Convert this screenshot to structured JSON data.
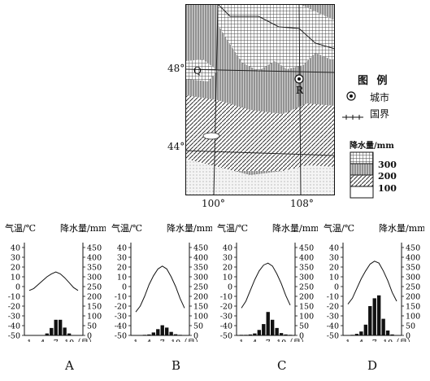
{
  "map": {
    "lat_labels": [
      "48°",
      "44°"
    ],
    "lon_labels": [
      "100°",
      "108°"
    ],
    "point_labels": {
      "Q": "Q",
      "R": "R"
    }
  },
  "legend": {
    "title": "图 例",
    "city_label": "城市",
    "border_label": "国界",
    "precip_title": "降水量/mm",
    "precip_values": [
      "300",
      "200",
      "100"
    ]
  },
  "climate_axes": {
    "temp_title": "气温/℃",
    "precip_title": "降水量/mm",
    "temp_ticks": [
      "40",
      "30",
      "20",
      "10",
      "0",
      "-10",
      "-20",
      "-30",
      "-40",
      "-50"
    ],
    "precip_ticks": [
      "450",
      "400",
      "350",
      "300",
      "250",
      "200",
      "150",
      "100",
      "50",
      "0"
    ],
    "month_ticks": [
      "1",
      "4",
      "7",
      "10"
    ],
    "month_unit": "（月）"
  },
  "chart_data": [
    {
      "type": "bar",
      "title": "A",
      "categories": [
        "1",
        "2",
        "3",
        "4",
        "5",
        "6",
        "7",
        "8",
        "9",
        "10",
        "11",
        "12"
      ],
      "series": [
        {
          "values": [
            -4,
            -2,
            2,
            6,
            10,
            13,
            15,
            13,
            9,
            4,
            -1,
            -4
          ]
        },
        {
          "values": [
            0,
            0,
            0,
            2,
            10,
            38,
            80,
            80,
            40,
            10,
            2,
            0
          ]
        }
      ],
      "ylim": [
        -50,
        40
      ],
      "y2lim": [
        0,
        450
      ]
    },
    {
      "type": "bar",
      "title": "B",
      "categories": [
        "1",
        "2",
        "3",
        "4",
        "5",
        "6",
        "7",
        "8",
        "9",
        "10",
        "11",
        "12"
      ],
      "series": [
        {
          "values": [
            -26,
            -20,
            -10,
            2,
            11,
            18,
            21,
            18,
            10,
            0,
            -12,
            -22
          ]
        },
        {
          "values": [
            2,
            2,
            3,
            5,
            15,
            32,
            52,
            40,
            18,
            6,
            3,
            2
          ]
        }
      ],
      "ylim": [
        -50,
        40
      ],
      "y2lim": [
        0,
        450
      ]
    },
    {
      "type": "bar",
      "title": "C",
      "categories": [
        "1",
        "2",
        "3",
        "4",
        "5",
        "6",
        "7",
        "8",
        "9",
        "10",
        "11",
        "12"
      ],
      "series": [
        {
          "values": [
            -22,
            -15,
            -4,
            7,
            16,
            22,
            24,
            21,
            13,
            3,
            -9,
            -19
          ]
        },
        {
          "values": [
            3,
            3,
            5,
            10,
            28,
            58,
            120,
            80,
            38,
            12,
            5,
            3
          ]
        }
      ],
      "ylim": [
        -50,
        40
      ],
      "y2lim": [
        0,
        450
      ]
    },
    {
      "type": "bar",
      "title": "D",
      "categories": [
        "1",
        "2",
        "3",
        "4",
        "5",
        "6",
        "7",
        "8",
        "9",
        "10",
        "11",
        "12"
      ],
      "series": [
        {
          "values": [
            -18,
            -12,
            -2,
            8,
            16,
            23,
            26,
            24,
            16,
            6,
            -6,
            -15
          ]
        },
        {
          "values": [
            2,
            3,
            8,
            20,
            55,
            150,
            190,
            205,
            85,
            25,
            5,
            2
          ]
        }
      ],
      "ylim": [
        -50,
        40
      ],
      "y2lim": [
        0,
        450
      ]
    }
  ]
}
